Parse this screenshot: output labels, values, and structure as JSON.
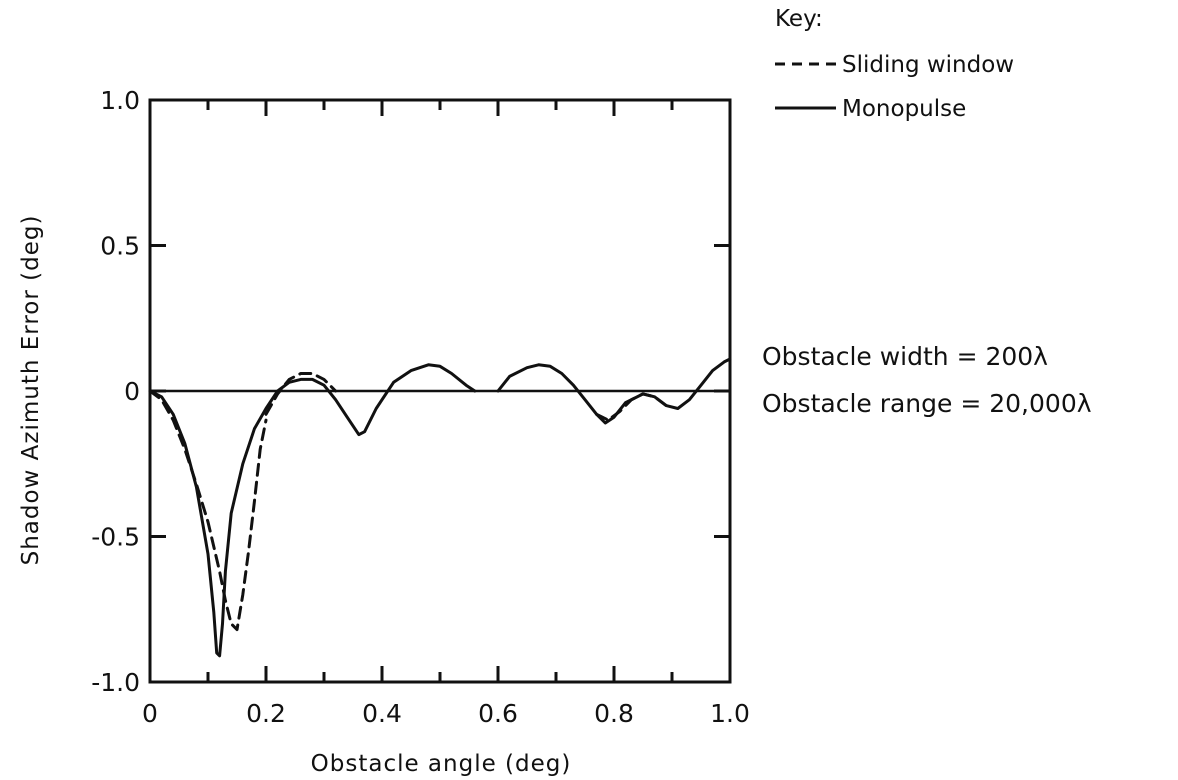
{
  "chart_data": {
    "type": "line",
    "xlabel": "Obstacle angle (deg)",
    "ylabel": "Shadow Azimuth Error (deg)",
    "xlim": [
      0,
      1.0
    ],
    "ylim": [
      -1.0,
      1.0
    ],
    "x_tick_labels": [
      "0",
      "0.2",
      "0.4",
      "0.6",
      "0.8",
      "1.0"
    ],
    "y_tick_labels": [
      "1.0",
      "0.5",
      "0",
      "-0.5",
      "-1.0"
    ],
    "x_ticks": [
      0,
      0.2,
      0.4,
      0.6,
      0.8,
      1.0
    ],
    "y_ticks": [
      1.0,
      0.5,
      0,
      -0.5,
      -1.0
    ],
    "x_minor_ticks": [
      0.1,
      0.3,
      0.5,
      0.7,
      0.9
    ],
    "zero_line": true,
    "grid": false,
    "legend": {
      "title": "Key:",
      "placement": "top-right outside",
      "entries": [
        {
          "label": "Sliding window",
          "style": "dashed"
        },
        {
          "label": "Monopulse",
          "style": "solid"
        }
      ]
    },
    "annotations": [
      "Obstacle width = 200λ",
      "Obstacle range = 20,000λ"
    ],
    "series": [
      {
        "name": "Monopulse",
        "style": "solid",
        "color": "#111111",
        "x": [
          0.0,
          0.02,
          0.04,
          0.06,
          0.08,
          0.1,
          0.11,
          0.115,
          0.12,
          0.125,
          0.13,
          0.14,
          0.16,
          0.18,
          0.2,
          0.22,
          0.24,
          0.26,
          0.28,
          0.3,
          0.32,
          0.34,
          0.36,
          0.37,
          0.39,
          0.42,
          0.45,
          0.48,
          0.5,
          0.52,
          0.545,
          0.56
        ],
        "y": [
          0.0,
          -0.02,
          -0.08,
          -0.18,
          -0.33,
          -0.56,
          -0.76,
          -0.9,
          -0.91,
          -0.8,
          -0.62,
          -0.42,
          -0.25,
          -0.13,
          -0.06,
          0.0,
          0.03,
          0.04,
          0.04,
          0.02,
          -0.03,
          -0.09,
          -0.15,
          -0.14,
          -0.06,
          0.03,
          0.07,
          0.09,
          0.085,
          0.06,
          0.02,
          0.0
        ]
      },
      {
        "name": "Monopulse",
        "style": "solid",
        "color": "#111111",
        "x": [
          0.6,
          0.62,
          0.65,
          0.67,
          0.69,
          0.71,
          0.73,
          0.75,
          0.77,
          0.785,
          0.8,
          0.82,
          0.85,
          0.87,
          0.89,
          0.91,
          0.93,
          0.95,
          0.97,
          0.99,
          1.0
        ],
        "y": [
          0.0,
          0.05,
          0.08,
          0.09,
          0.085,
          0.06,
          0.02,
          -0.03,
          -0.08,
          -0.11,
          -0.09,
          -0.04,
          -0.01,
          -0.02,
          -0.05,
          -0.06,
          -0.03,
          0.02,
          0.07,
          0.1,
          0.11
        ]
      },
      {
        "name": "Sliding window",
        "style": "dashed",
        "color": "#111111",
        "x": [
          0.0,
          0.02,
          0.04,
          0.06,
          0.08,
          0.1,
          0.12,
          0.13,
          0.14,
          0.15,
          0.16,
          0.17,
          0.18,
          0.19,
          0.2
        ],
        "y": [
          0.0,
          -0.03,
          -0.1,
          -0.2,
          -0.32,
          -0.45,
          -0.62,
          -0.72,
          -0.8,
          -0.82,
          -0.7,
          -0.55,
          -0.38,
          -0.2,
          -0.1
        ]
      },
      {
        "name": "Sliding window",
        "style": "dashed",
        "color": "#111111",
        "x": [
          0.2,
          0.22,
          0.24,
          0.26,
          0.28,
          0.3,
          0.32
        ],
        "y": [
          -0.08,
          -0.01,
          0.04,
          0.06,
          0.06,
          0.04,
          0.0
        ]
      },
      {
        "name": "Sliding window",
        "style": "dashed",
        "color": "#111111",
        "x": [
          0.77,
          0.79,
          0.81,
          0.83,
          0.85,
          0.87,
          0.89
        ],
        "y": [
          -0.08,
          -0.1,
          -0.07,
          -0.03,
          -0.01,
          -0.02,
          -0.05
        ]
      }
    ]
  }
}
